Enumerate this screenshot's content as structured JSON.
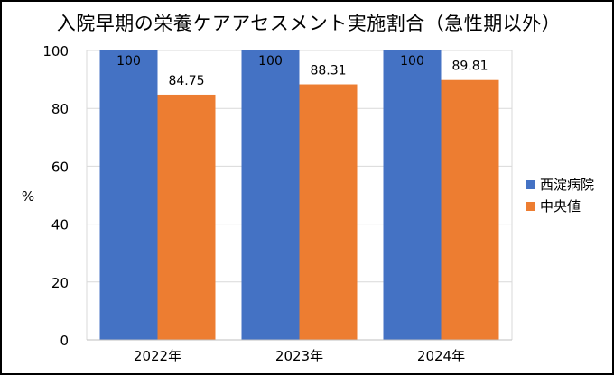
{
  "chart_data": {
    "type": "bar",
    "title": "入院早期の栄養ケアアセスメント実施割合（急性期以外）",
    "ylabel": "%",
    "xlabel": "",
    "categories": [
      "2022年",
      "2023年",
      "2024年"
    ],
    "series": [
      {
        "name": "西淀病院",
        "values": [
          100,
          100,
          100
        ],
        "color": "#4472C4"
      },
      {
        "name": "中央値",
        "values": [
          84.75,
          88.31,
          89.81
        ],
        "color": "#ED7D31"
      }
    ],
    "data_labels": [
      [
        "100",
        "100",
        "100"
      ],
      [
        "84.75",
        "88.31",
        "89.81"
      ]
    ],
    "ylim": [
      0,
      100
    ],
    "yticks": [
      0,
      20,
      40,
      60,
      80,
      100
    ],
    "grid": true,
    "legend": "right"
  }
}
